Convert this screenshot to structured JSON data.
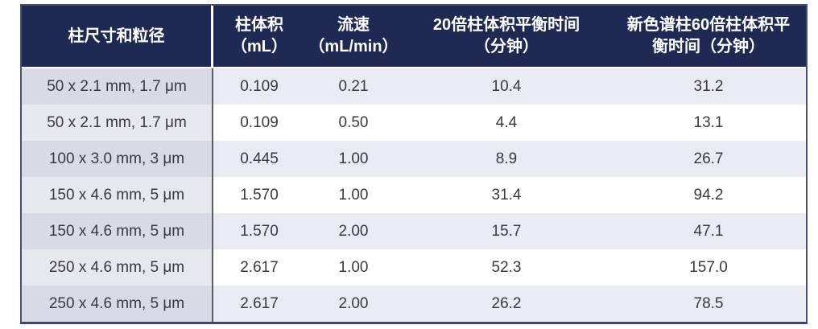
{
  "colors": {
    "header_bg": "#1e2a54",
    "header_text": "#ffffff",
    "border_dark": "#46517a",
    "border_bottom_dark": "#3d4870",
    "divider_dark": "#5c5c66",
    "col1_odd": "#e7e7ee",
    "col1_even": "#d9dae4",
    "row_odd": "#ffffff",
    "row_even": "#eaebf2",
    "cell_text": "#3a3a3c"
  },
  "header": {
    "col1": {
      "line1": "柱尺寸和粒径",
      "line2": ""
    },
    "col2": {
      "line1": "柱体积",
      "line2": "（mL）"
    },
    "col3": {
      "line1": "流速",
      "line2": "（mL/min）"
    },
    "col4": {
      "line1": "20倍柱体积平衡时间",
      "line2": "（分钟）"
    },
    "col5": {
      "line1": "新色谱柱60倍柱体积平",
      "line2": "衡时间（分钟）"
    }
  },
  "rows": [
    {
      "size": "50 x 2.1 mm, 1.7 μm",
      "volume": "0.109",
      "flow": "0.21",
      "t20": "10.4",
      "t60": "31.2"
    },
    {
      "size": "50 x 2.1 mm, 1.7 μm",
      "volume": "0.109",
      "flow": "0.50",
      "t20": "4.4",
      "t60": "13.1"
    },
    {
      "size": "100 x 3.0 mm, 3 μm",
      "volume": "0.445",
      "flow": "1.00",
      "t20": "8.9",
      "t60": "26.7"
    },
    {
      "size": "150 x 4.6 mm, 5 μm",
      "volume": "1.570",
      "flow": "1.00",
      "t20": "31.4",
      "t60": "94.2"
    },
    {
      "size": "150 x 4.6 mm, 5 μm",
      "volume": "1.570",
      "flow": "2.00",
      "t20": "15.7",
      "t60": "47.1"
    },
    {
      "size": "250 x 4.6 mm, 5 μm",
      "volume": "2.617",
      "flow": "1.00",
      "t20": "52.3",
      "t60": "157.0"
    },
    {
      "size": "250 x 4.6 mm, 5 μm",
      "volume": "2.617",
      "flow": "2.00",
      "t20": "26.2",
      "t60": "78.5"
    }
  ]
}
